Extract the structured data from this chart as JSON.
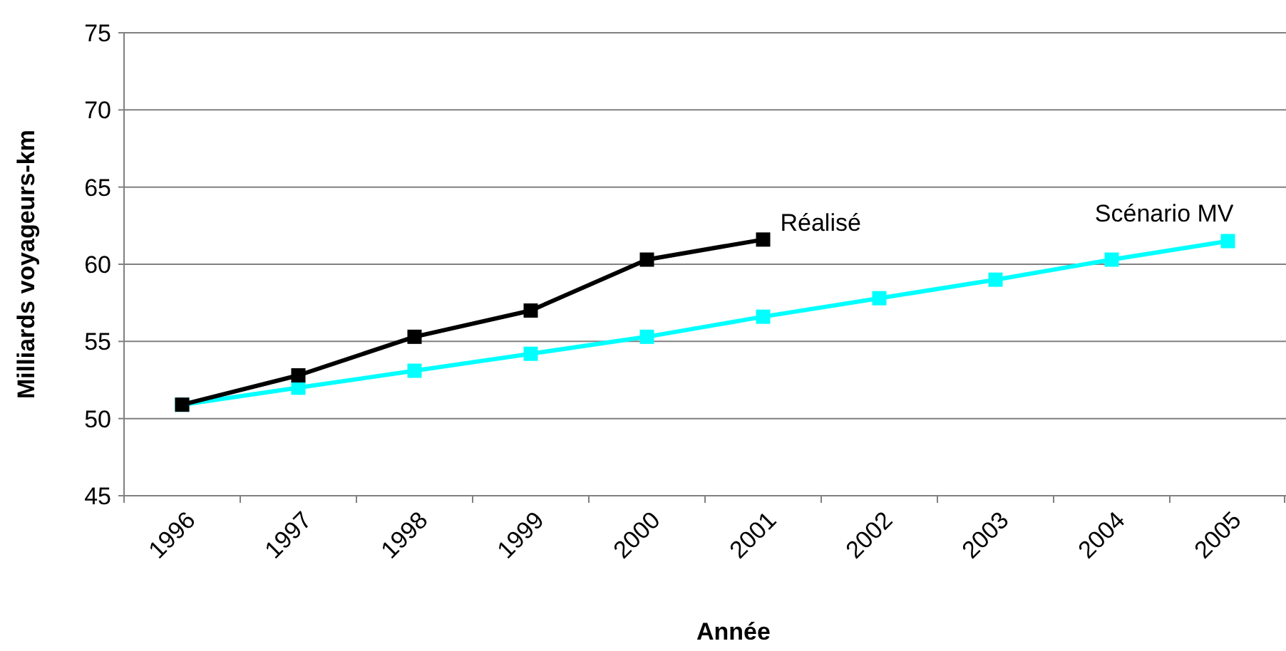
{
  "chart_data": {
    "type": "line",
    "xlabel": "Année",
    "ylabel": "Milliards voyageurs-km",
    "categories": [
      "1996",
      "1997",
      "1998",
      "1999",
      "2000",
      "2001",
      "2002",
      "2003",
      "2004",
      "2005"
    ],
    "series": [
      {
        "name": "Réalisé",
        "color": "#000000",
        "values": [
          50.9,
          52.8,
          55.3,
          57.0,
          60.3,
          61.6,
          null,
          null,
          null,
          null
        ]
      },
      {
        "name": "Scénario MV",
        "color": "#00ffff",
        "values": [
          50.9,
          52.0,
          53.1,
          54.2,
          55.3,
          56.6,
          57.8,
          59.0,
          60.3,
          61.5
        ]
      }
    ],
    "ylim": [
      45,
      75
    ],
    "yticks": [
      45,
      50,
      55,
      60,
      65,
      70,
      75
    ],
    "grid": "y",
    "marker": "square",
    "line_style": "solid"
  }
}
